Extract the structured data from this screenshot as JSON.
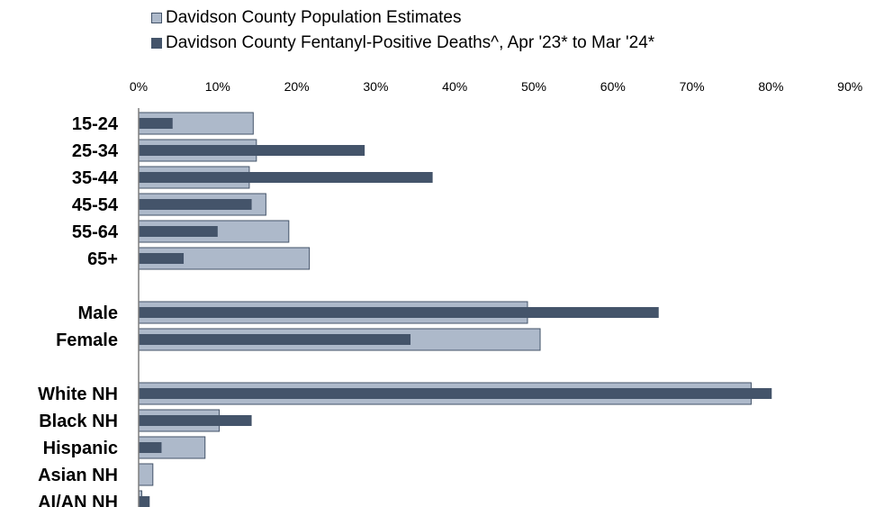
{
  "chart_data": {
    "type": "bar",
    "orientation": "horizontal",
    "title": "",
    "xlabel": "",
    "ylabel": "",
    "xlim": [
      0,
      90
    ],
    "x_ticks": [
      "0%",
      "10%",
      "20%",
      "30%",
      "40%",
      "50%",
      "60%",
      "70%",
      "80%",
      "90%"
    ],
    "x_tick_values": [
      0,
      10,
      20,
      30,
      40,
      50,
      60,
      70,
      80,
      90
    ],
    "grid": false,
    "legend_position": "top",
    "categories": [
      "15-24",
      "25-34",
      "35-44",
      "45-54",
      "55-64",
      "65+",
      "",
      "Male",
      "Female",
      "",
      "White NH",
      "Black NH",
      "Hispanic",
      "Asian NH",
      "AI/AN NH"
    ],
    "series": [
      {
        "name": "Davidson County Population Estimates",
        "color": "#adb9ca",
        "values": [
          14.5,
          14.9,
          14.0,
          16.1,
          19.0,
          21.6,
          null,
          49.2,
          50.8,
          null,
          77.5,
          10.2,
          8.4,
          1.8,
          0.4
        ]
      },
      {
        "name": "Davidson County Fentanyl-Positive Deaths^, Apr '23* to Mar '24*",
        "color": "#44546a",
        "values": [
          4.3,
          28.6,
          37.2,
          14.3,
          10.0,
          5.7,
          null,
          65.8,
          34.4,
          null,
          80.1,
          14.3,
          2.9,
          0.0,
          1.4
        ]
      }
    ]
  }
}
